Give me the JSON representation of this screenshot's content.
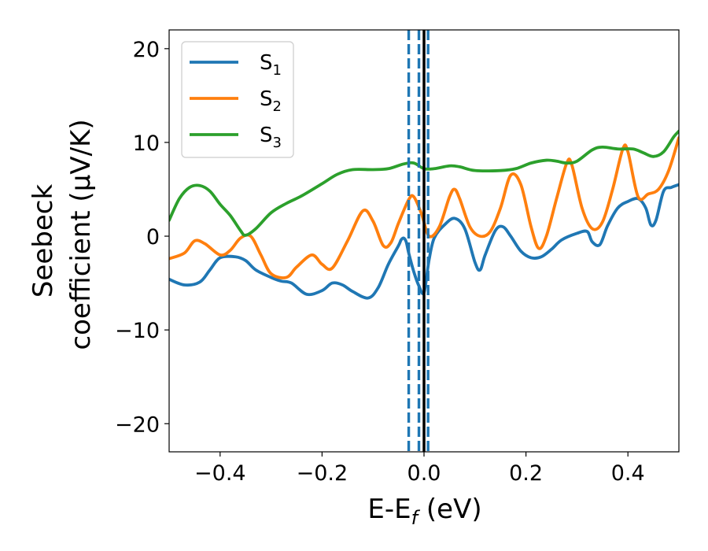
{
  "chart_data": {
    "type": "line",
    "xlabel": "E-E_f (eV)",
    "ylabel_line1": "Seebeck",
    "ylabel_line2": "coefficient  (μV/K)",
    "xlim": [
      -0.5,
      0.5
    ],
    "ylim": [
      -23,
      22
    ],
    "x_ticks": [
      -0.4,
      -0.2,
      0.0,
      0.2,
      0.4
    ],
    "x_tick_labels": [
      "−0.4",
      "−0.2",
      "0.0",
      "0.2",
      "0.4"
    ],
    "y_ticks": [
      -20,
      -10,
      0,
      10,
      20
    ],
    "y_tick_labels": [
      "−20",
      "−10",
      "0",
      "10",
      "20"
    ],
    "grid": false,
    "legend_position": "top-left",
    "vertical_lines": [
      {
        "x": -0.03,
        "style": "dashed",
        "color": "#1f77b4"
      },
      {
        "x": -0.01,
        "style": "dashed",
        "color": "#1f77b4"
      },
      {
        "x": 0.008,
        "style": "dashed",
        "color": "#1f77b4"
      },
      {
        "x": 0.0,
        "style": "solid",
        "color": "#000000"
      }
    ],
    "series": [
      {
        "name": "S",
        "subscript": "1",
        "color": "#1f77b4",
        "points": [
          [
            -0.5,
            -4.6
          ],
          [
            -0.47,
            -5.2
          ],
          [
            -0.44,
            -4.9
          ],
          [
            -0.42,
            -3.6
          ],
          [
            -0.4,
            -2.3
          ],
          [
            -0.37,
            -2.2
          ],
          [
            -0.35,
            -2.6
          ],
          [
            -0.33,
            -3.6
          ],
          [
            -0.3,
            -4.4
          ],
          [
            -0.28,
            -4.8
          ],
          [
            -0.26,
            -5.0
          ],
          [
            -0.23,
            -6.2
          ],
          [
            -0.2,
            -5.8
          ],
          [
            -0.18,
            -5.0
          ],
          [
            -0.16,
            -5.2
          ],
          [
            -0.14,
            -5.9
          ],
          [
            -0.11,
            -6.6
          ],
          [
            -0.09,
            -5.5
          ],
          [
            -0.07,
            -3.0
          ],
          [
            -0.05,
            -1.0
          ],
          [
            -0.045,
            -0.4
          ],
          [
            -0.04,
            -0.2
          ],
          [
            -0.035,
            -0.6
          ],
          [
            -0.03,
            -1.8
          ],
          [
            -0.02,
            -3.8
          ],
          [
            -0.01,
            -5.3
          ],
          [
            0.0,
            -6.0
          ],
          [
            0.01,
            -2.5
          ],
          [
            0.02,
            -0.2
          ],
          [
            0.04,
            1.2
          ],
          [
            0.06,
            1.9
          ],
          [
            0.08,
            0.8
          ],
          [
            0.1,
            -2.8
          ],
          [
            0.11,
            -3.6
          ],
          [
            0.12,
            -2.0
          ],
          [
            0.14,
            0.6
          ],
          [
            0.155,
            1.0
          ],
          [
            0.17,
            0.0
          ],
          [
            0.19,
            -1.6
          ],
          [
            0.21,
            -2.3
          ],
          [
            0.23,
            -2.2
          ],
          [
            0.25,
            -1.4
          ],
          [
            0.27,
            -0.4
          ],
          [
            0.3,
            0.3
          ],
          [
            0.32,
            0.5
          ],
          [
            0.33,
            -0.6
          ],
          [
            0.345,
            -0.9
          ],
          [
            0.36,
            1.1
          ],
          [
            0.38,
            3.0
          ],
          [
            0.4,
            3.7
          ],
          [
            0.42,
            4.0
          ],
          [
            0.435,
            3.0
          ],
          [
            0.445,
            1.2
          ],
          [
            0.455,
            1.7
          ],
          [
            0.47,
            4.8
          ],
          [
            0.485,
            5.2
          ],
          [
            0.5,
            5.5
          ]
        ]
      },
      {
        "name": "S",
        "subscript": "2",
        "color": "#ff7f0e",
        "points": [
          [
            -0.5,
            -2.4
          ],
          [
            -0.47,
            -1.8
          ],
          [
            -0.45,
            -0.5
          ],
          [
            -0.43,
            -0.8
          ],
          [
            -0.4,
            -2.0
          ],
          [
            -0.38,
            -1.5
          ],
          [
            -0.36,
            -0.2
          ],
          [
            -0.34,
            0.0
          ],
          [
            -0.32,
            -2.0
          ],
          [
            -0.3,
            -4.0
          ],
          [
            -0.27,
            -4.4
          ],
          [
            -0.25,
            -3.3
          ],
          [
            -0.22,
            -2.0
          ],
          [
            -0.2,
            -3.0
          ],
          [
            -0.18,
            -3.4
          ],
          [
            -0.15,
            -0.5
          ],
          [
            -0.12,
            2.7
          ],
          [
            -0.1,
            1.6
          ],
          [
            -0.08,
            -1.0
          ],
          [
            -0.065,
            -0.7
          ],
          [
            -0.05,
            1.4
          ],
          [
            -0.03,
            3.9
          ],
          [
            -0.02,
            4.2
          ],
          [
            -0.005,
            2.4
          ],
          [
            0.01,
            0.0
          ],
          [
            0.03,
            1.0
          ],
          [
            0.05,
            4.2
          ],
          [
            0.06,
            5.0
          ],
          [
            0.07,
            4.0
          ],
          [
            0.09,
            1.0
          ],
          [
            0.11,
            0.0
          ],
          [
            0.13,
            0.5
          ],
          [
            0.15,
            3.0
          ],
          [
            0.17,
            6.5
          ],
          [
            0.19,
            5.5
          ],
          [
            0.21,
            1.0
          ],
          [
            0.225,
            -1.3
          ],
          [
            0.24,
            0.0
          ],
          [
            0.26,
            4.0
          ],
          [
            0.28,
            7.8
          ],
          [
            0.29,
            7.6
          ],
          [
            0.31,
            3.0
          ],
          [
            0.33,
            0.8
          ],
          [
            0.35,
            1.5
          ],
          [
            0.37,
            5.0
          ],
          [
            0.39,
            9.3
          ],
          [
            0.4,
            9.0
          ],
          [
            0.42,
            4.2
          ],
          [
            0.44,
            4.5
          ],
          [
            0.46,
            5.0
          ],
          [
            0.48,
            7.0
          ],
          [
            0.5,
            10.5
          ]
        ]
      },
      {
        "name": "S",
        "subscript": "3",
        "color": "#2ca02c",
        "points": [
          [
            -0.5,
            1.7
          ],
          [
            -0.48,
            4.0
          ],
          [
            -0.46,
            5.2
          ],
          [
            -0.44,
            5.4
          ],
          [
            -0.42,
            4.8
          ],
          [
            -0.4,
            3.4
          ],
          [
            -0.38,
            2.2
          ],
          [
            -0.36,
            0.6
          ],
          [
            -0.35,
            0.1
          ],
          [
            -0.33,
            0.8
          ],
          [
            -0.3,
            2.5
          ],
          [
            -0.27,
            3.5
          ],
          [
            -0.24,
            4.3
          ],
          [
            -0.2,
            5.6
          ],
          [
            -0.17,
            6.6
          ],
          [
            -0.14,
            7.1
          ],
          [
            -0.1,
            7.1
          ],
          [
            -0.07,
            7.2
          ],
          [
            -0.04,
            7.7
          ],
          [
            -0.02,
            7.8
          ],
          [
            0.0,
            7.2
          ],
          [
            0.02,
            7.2
          ],
          [
            0.05,
            7.5
          ],
          [
            0.07,
            7.4
          ],
          [
            0.1,
            7.0
          ],
          [
            0.15,
            7.0
          ],
          [
            0.18,
            7.2
          ],
          [
            0.21,
            7.8
          ],
          [
            0.24,
            8.1
          ],
          [
            0.26,
            8.0
          ],
          [
            0.28,
            7.8
          ],
          [
            0.3,
            8.0
          ],
          [
            0.33,
            9.2
          ],
          [
            0.35,
            9.5
          ],
          [
            0.38,
            9.3
          ],
          [
            0.41,
            9.3
          ],
          [
            0.43,
            8.9
          ],
          [
            0.45,
            8.5
          ],
          [
            0.47,
            9.0
          ],
          [
            0.49,
            10.6
          ],
          [
            0.5,
            11.2
          ]
        ]
      }
    ]
  }
}
